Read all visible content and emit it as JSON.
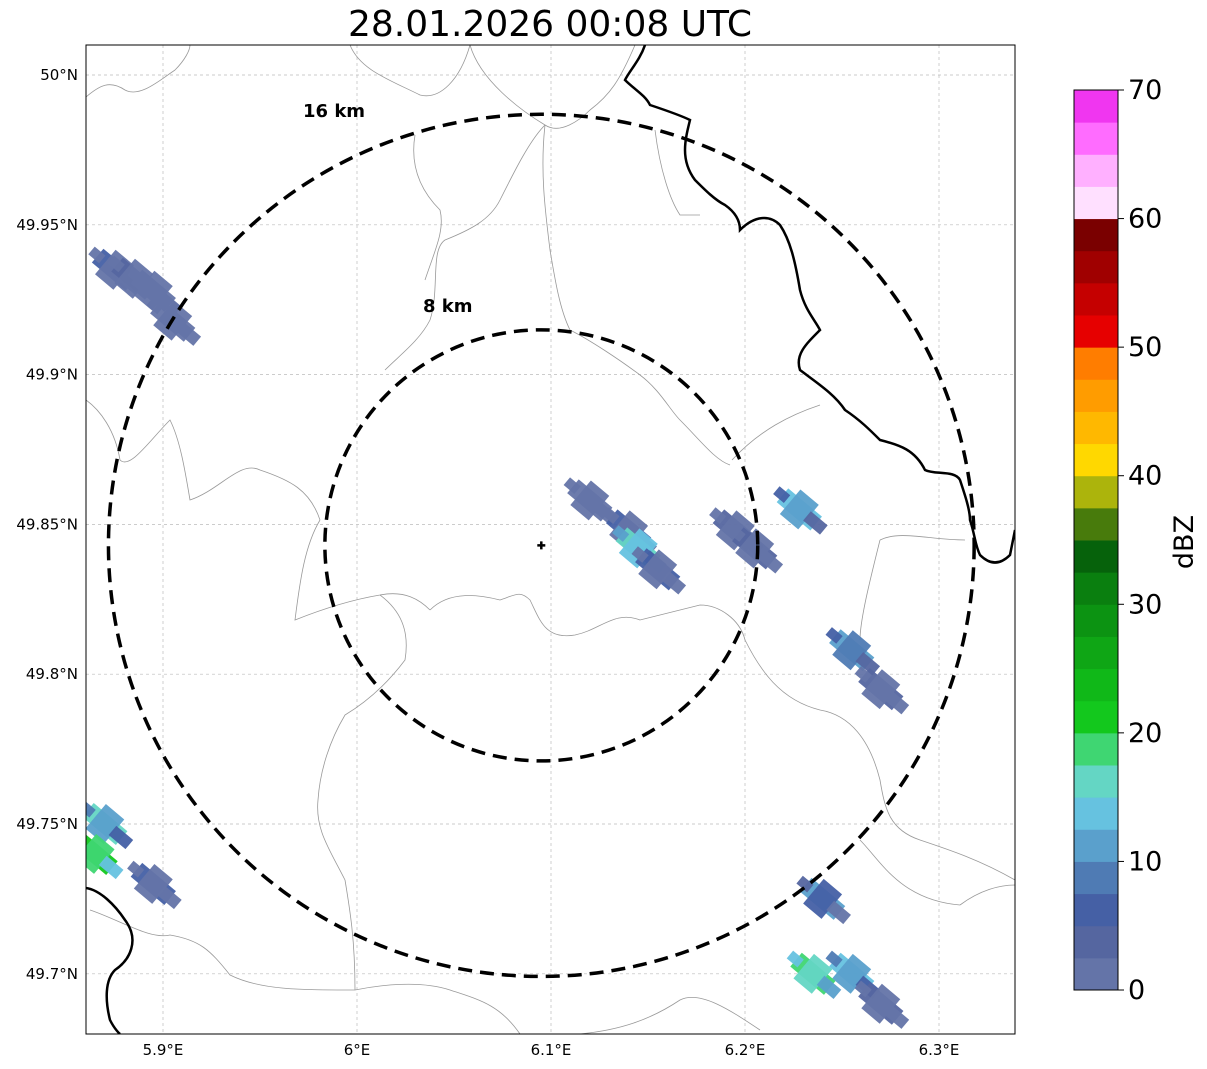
{
  "title": "28.01.2026 00:08 UTC",
  "map": {
    "lon_range": [
      5.86,
      6.34
    ],
    "lat_range": [
      49.68,
      50.01
    ],
    "lon_ticks": [
      {
        "value": 5.9,
        "label": "5.9°E"
      },
      {
        "value": 6.0,
        "label": "6°E"
      },
      {
        "value": 6.1,
        "label": "6.1°E"
      },
      {
        "value": 6.2,
        "label": "6.2°E"
      },
      {
        "value": 6.3,
        "label": "6.3°E"
      }
    ],
    "lat_ticks": [
      {
        "value": 50.0,
        "label": "50°N"
      },
      {
        "value": 49.95,
        "label": "49.95°N"
      },
      {
        "value": 49.9,
        "label": "49.9°N"
      },
      {
        "value": 49.85,
        "label": "49.85°N"
      },
      {
        "value": 49.8,
        "label": "49.8°N"
      },
      {
        "value": 49.75,
        "label": "49.75°N"
      },
      {
        "value": 49.7,
        "label": "49.7°N"
      }
    ],
    "radar_site": {
      "lon": 6.095,
      "lat": 49.843
    },
    "range_rings": [
      {
        "label": "8 km",
        "radius_km": 8
      },
      {
        "label": "16 km",
        "radius_km": 16
      }
    ]
  },
  "colorbar": {
    "label": "dBZ",
    "tick_labels": [
      "0",
      "10",
      "20",
      "30",
      "40",
      "50",
      "60",
      "70"
    ],
    "colors": [
      "#6474a8",
      "#5566a0",
      "#4560a5",
      "#4f7bb4",
      "#5aa0cc",
      "#66c2e0",
      "#64d6c4",
      "#3fd672",
      "#13c81d",
      "#10b818",
      "#0fa615",
      "#0c9312",
      "#0a7f0f",
      "#06620b",
      "#487b0c",
      "#acb40c",
      "#ffd800",
      "#ffb800",
      "#ff9c00",
      "#ff7d00",
      "#e60000",
      "#c50000",
      "#a00000",
      "#7a0000",
      "#ffe0ff",
      "#ffb0ff",
      "#ff6cff",
      "#f036f0"
    ]
  },
  "reflectivity": [
    {
      "lon": 5.875,
      "lat": 49.935,
      "dbz": 5
    },
    {
      "lon": 5.885,
      "lat": 49.932,
      "dbz": 3
    },
    {
      "lon": 5.895,
      "lat": 49.928,
      "dbz": 2
    },
    {
      "lon": 5.905,
      "lat": 49.918,
      "dbz": 1
    },
    {
      "lon": 6.12,
      "lat": 49.858,
      "dbz": 2
    },
    {
      "lon": 6.14,
      "lat": 49.848,
      "dbz": 5
    },
    {
      "lon": 6.145,
      "lat": 49.842,
      "dbz": 16
    },
    {
      "lon": 6.155,
      "lat": 49.835,
      "dbz": 5
    },
    {
      "lon": 6.195,
      "lat": 49.848,
      "dbz": 4
    },
    {
      "lon": 6.205,
      "lat": 49.842,
      "dbz": 4
    },
    {
      "lon": 6.228,
      "lat": 49.855,
      "dbz": 13
    },
    {
      "lon": 6.255,
      "lat": 49.808,
      "dbz": 12
    },
    {
      "lon": 6.27,
      "lat": 49.795,
      "dbz": 4
    },
    {
      "lon": 5.87,
      "lat": 49.75,
      "dbz": 15
    },
    {
      "lon": 5.865,
      "lat": 49.74,
      "dbz": 22
    },
    {
      "lon": 5.895,
      "lat": 49.73,
      "dbz": 5
    },
    {
      "lon": 6.24,
      "lat": 49.725,
      "dbz": 10
    },
    {
      "lon": 6.255,
      "lat": 49.7,
      "dbz": 14
    },
    {
      "lon": 6.27,
      "lat": 49.69,
      "dbz": 3
    },
    {
      "lon": 6.235,
      "lat": 49.7,
      "dbz": 19
    }
  ]
}
